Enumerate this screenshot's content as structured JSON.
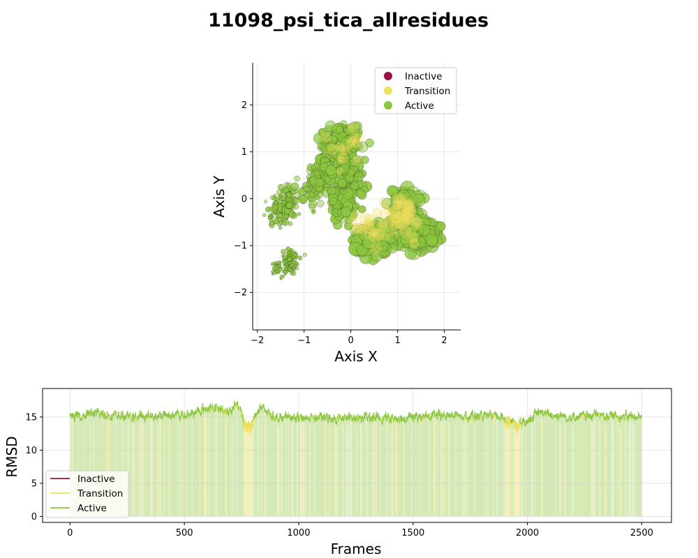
{
  "title": "11098_psi_tica_allresidues",
  "chart_data": [
    {
      "type": "scatter",
      "xlabel": "Axis X",
      "ylabel": "Axis Y",
      "xlim": [
        -2.1,
        2.35
      ],
      "ylim": [
        -2.8,
        2.9
      ],
      "xticks": [
        -2,
        -1,
        0,
        1,
        2
      ],
      "xtick_labels": [
        "−2",
        "−1",
        "0",
        "1",
        "2"
      ],
      "yticks": [
        -2,
        -1,
        0,
        1,
        2
      ],
      "ytick_labels": [
        "−2",
        "−1",
        "0",
        "1",
        "2"
      ],
      "grid": true,
      "legend_position": "top-right",
      "legend": [
        {
          "label": "Inactive",
          "color": "#9e1046"
        },
        {
          "label": "Transition",
          "color": "#f0e060"
        },
        {
          "label": "Active",
          "color": "#8dc63f"
        }
      ],
      "clusters": [
        {
          "state": "Active",
          "center": [
            -1.6,
            -0.3
          ],
          "spread": [
            0.2,
            0.3
          ],
          "count": 55,
          "size_range": [
            2,
            4
          ]
        },
        {
          "state": "Active",
          "center": [
            -1.35,
            -0.1
          ],
          "spread": [
            0.15,
            0.35
          ],
          "count": 80,
          "size_range": [
            3,
            5
          ]
        },
        {
          "state": "Active",
          "center": [
            -1.3,
            -1.35
          ],
          "spread": [
            0.15,
            0.2
          ],
          "count": 110,
          "size_range": [
            1.5,
            3.5
          ]
        },
        {
          "state": "Active",
          "center": [
            -1.55,
            -1.5
          ],
          "spread": [
            0.12,
            0.15
          ],
          "count": 30,
          "size_range": [
            1.5,
            3
          ]
        },
        {
          "state": "Active",
          "center": [
            -0.9,
            0.1
          ],
          "spread": [
            0.25,
            0.3
          ],
          "count": 40,
          "size_range": [
            3,
            6
          ]
        },
        {
          "state": "Active",
          "center": [
            -0.6,
            0.5
          ],
          "spread": [
            0.2,
            0.35
          ],
          "count": 70,
          "size_range": [
            4,
            7
          ]
        },
        {
          "state": "Active",
          "center": [
            -0.2,
            1.2
          ],
          "spread": [
            0.3,
            0.3
          ],
          "count": 200,
          "size_range": [
            5,
            8
          ]
        },
        {
          "state": "Active",
          "center": [
            -0.15,
            0.5
          ],
          "spread": [
            0.3,
            0.4
          ],
          "count": 180,
          "size_range": [
            5,
            8
          ]
        },
        {
          "state": "Active",
          "center": [
            -0.15,
            -0.1
          ],
          "spread": [
            0.25,
            0.3
          ],
          "count": 90,
          "size_range": [
            5,
            8
          ]
        },
        {
          "state": "Active",
          "center": [
            0.5,
            -0.9
          ],
          "spread": [
            0.35,
            0.25
          ],
          "count": 140,
          "size_range": [
            7,
            10
          ]
        },
        {
          "state": "Active",
          "center": [
            1.2,
            -0.2
          ],
          "spread": [
            0.25,
            0.35
          ],
          "count": 120,
          "size_range": [
            7,
            10
          ]
        },
        {
          "state": "Active",
          "center": [
            1.5,
            -0.8
          ],
          "spread": [
            0.3,
            0.25
          ],
          "count": 150,
          "size_range": [
            7,
            10
          ]
        },
        {
          "state": "Transition",
          "center": [
            1.15,
            -0.3
          ],
          "spread": [
            0.3,
            0.35
          ],
          "count": 35,
          "size_range": [
            6,
            10
          ]
        },
        {
          "state": "Transition",
          "center": [
            0.3,
            -0.6
          ],
          "spread": [
            0.3,
            0.3
          ],
          "count": 20,
          "size_range": [
            6,
            9
          ]
        },
        {
          "state": "Transition",
          "center": [
            0.0,
            1.1
          ],
          "spread": [
            0.3,
            0.4
          ],
          "count": 15,
          "size_range": [
            5,
            8
          ]
        }
      ]
    },
    {
      "type": "area",
      "xlabel": "Frames",
      "ylabel": "RMSD",
      "xlim": [
        -120,
        2630
      ],
      "ylim": [
        -0.9,
        19.3
      ],
      "xticks": [
        0,
        500,
        1000,
        1500,
        2000,
        2500
      ],
      "xtick_labels": [
        "0",
        "500",
        "1000",
        "1500",
        "2000",
        "2500"
      ],
      "yticks": [
        0,
        5,
        10,
        15
      ],
      "ytick_labels": [
        "0",
        "5",
        "10",
        "15"
      ],
      "grid": true,
      "legend_position": "bottom-left",
      "legend": [
        {
          "label": "Inactive",
          "color": "#9e1046"
        },
        {
          "label": "Transition",
          "color": "#f0e060"
        },
        {
          "label": "Active",
          "color": "#8dc63f"
        }
      ],
      "n_frames": 2500,
      "rmsd_profile": {
        "frames": [
          0,
          100,
          200,
          300,
          400,
          500,
          550,
          600,
          700,
          740,
          760,
          790,
          830,
          900,
          1000,
          1100,
          1200,
          1300,
          1400,
          1500,
          1600,
          1700,
          1800,
          1900,
          1950,
          1990,
          2050,
          2100,
          2200,
          2300,
          2400,
          2500
        ],
        "values": [
          15.0,
          15.6,
          15.2,
          15.0,
          15.3,
          15.3,
          15.7,
          16.4,
          16.0,
          16.8,
          14.2,
          14.0,
          16.5,
          15.0,
          14.9,
          14.9,
          14.8,
          15.0,
          14.8,
          15.0,
          15.2,
          15.3,
          15.1,
          15.0,
          14.0,
          14.3,
          15.7,
          15.4,
          15.0,
          15.3,
          15.2,
          15.0
        ]
      },
      "transition_ranges": [
        [
          760,
          800
        ],
        [
          1940,
          1965
        ],
        [
          1905,
          1925
        ]
      ]
    }
  ]
}
